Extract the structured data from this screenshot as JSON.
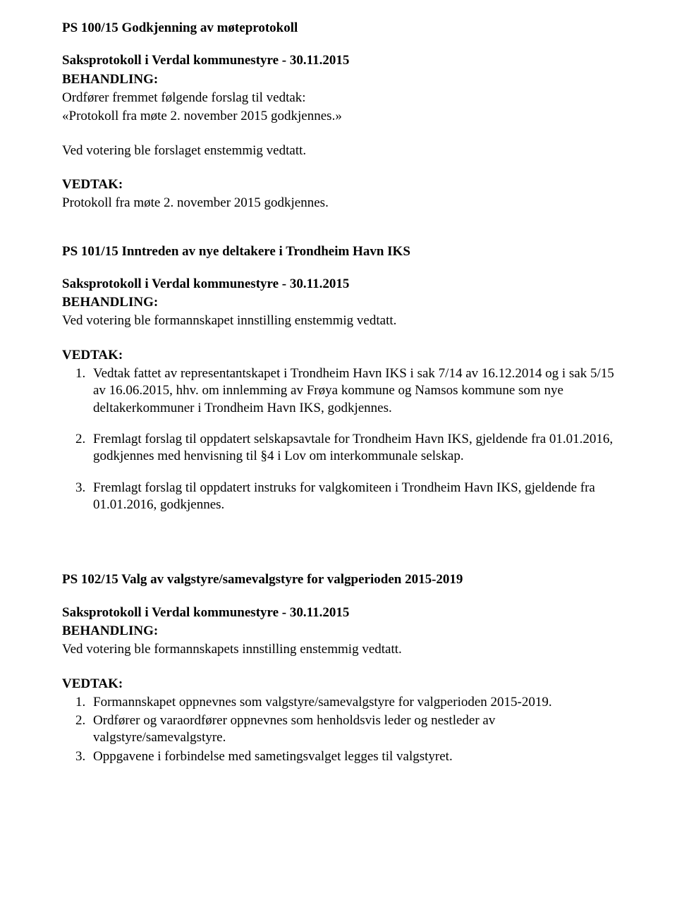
{
  "colors": {
    "text": "#000000",
    "background": "#ffffff"
  },
  "typography": {
    "font_family": "Times New Roman",
    "body_size_pt": 14,
    "bold_weight": 700
  },
  "sec1": {
    "title": "PS 100/15 Godkjenning av møteprotokoll",
    "subheading": "Saksprotokoll i Verdal kommunestyre - 30.11.2015",
    "behandling_label": "BEHANDLING:",
    "behandling_line1": "Ordfører fremmet følgende forslag til vedtak:",
    "behandling_line2": "«Protokoll fra møte 2. november 2015 godkjennes.»",
    "behandling_line3": "Ved votering ble forslaget enstemmig vedtatt.",
    "vedtak_label": "VEDTAK:",
    "vedtak_line1": "Protokoll fra møte 2. november 2015 godkjennes."
  },
  "sec2": {
    "title": "PS 101/15 Inntreden av nye deltakere i Trondheim Havn IKS",
    "subheading": "Saksprotokoll i Verdal kommunestyre - 30.11.2015",
    "behandling_label": "BEHANDLING:",
    "behandling_line1": "Ved votering ble formannskapet innstilling enstemmig vedtatt.",
    "vedtak_label": "VEDTAK:",
    "items": {
      "i1": "Vedtak fattet av representantskapet i Trondheim Havn IKS i sak 7/14 av 16.12.2014 og i sak 5/15 av 16.06.2015, hhv. om innlemming av Frøya kommune og Namsos kommune som nye deltakerkommuner i Trondheim Havn IKS, godkjennes.",
      "i2": "Fremlagt forslag til oppdatert selskapsavtale for Trondheim Havn IKS, gjeldende fra 01.01.2016, godkjennes med henvisning til §4 i Lov om interkommunale selskap.",
      "i3": "Fremlagt forslag til oppdatert instruks for valgkomiteen i Trondheim Havn IKS, gjeldende fra 01.01.2016, godkjennes."
    }
  },
  "sec3": {
    "title": "PS 102/15 Valg av valgstyre/samevalgstyre for valgperioden 2015-2019",
    "subheading": "Saksprotokoll i Verdal kommunestyre - 30.11.2015",
    "behandling_label": "BEHANDLING:",
    "behandling_line1": "Ved votering ble formannskapets innstilling enstemmig vedtatt.",
    "vedtak_label": "VEDTAK:",
    "items": {
      "i1": "Formannskapet oppnevnes som valgstyre/samevalgstyre for valgperioden 2015-2019.",
      "i2": "Ordfører og varaordfører oppnevnes som henholdsvis leder og nestleder av valgstyre/samevalgstyre.",
      "i3": "Oppgavene i forbindelse med sametingsvalget legges til valgstyret."
    }
  }
}
